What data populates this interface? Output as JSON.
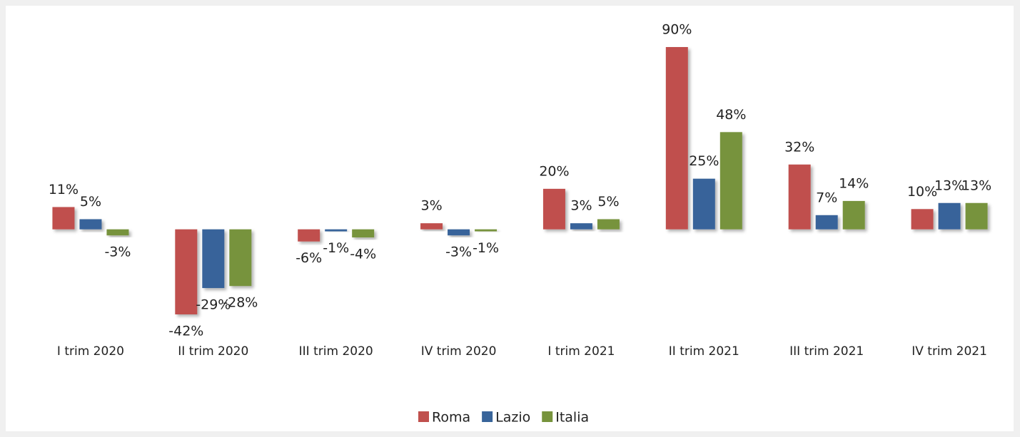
{
  "chart_data": {
    "type": "bar",
    "categories": [
      "I trim 2020",
      "II trim 2020",
      "III trim 2020",
      "IV trim 2020",
      "I trim 2021",
      "II trim 2021",
      "III trim 2021",
      "IV trim 2021"
    ],
    "series": [
      {
        "name": "Roma",
        "color": "#c0504d",
        "values": [
          11,
          -42,
          -6,
          3,
          20,
          90,
          32,
          10
        ],
        "value_labels": [
          "11%",
          "-42%",
          "-6%",
          "3%",
          "20%",
          "90%",
          "32%",
          "10%"
        ]
      },
      {
        "name": "Lazio",
        "color": "#38649a",
        "values": [
          5,
          -29,
          -1,
          -3,
          3,
          25,
          7,
          13
        ],
        "value_labels": [
          "5%",
          "-29%",
          "-1%",
          "-3%",
          "3%",
          "25%",
          "7%",
          "13%"
        ]
      },
      {
        "name": "Italia",
        "color": "#77933c",
        "values": [
          -3,
          -28,
          -4,
          -1,
          5,
          48,
          14,
          13
        ],
        "value_labels": [
          "-3%",
          "-28%",
          "-4%",
          "-1%",
          "5%",
          "48%",
          "14%",
          "13%"
        ]
      }
    ],
    "legend": "bottom"
  }
}
